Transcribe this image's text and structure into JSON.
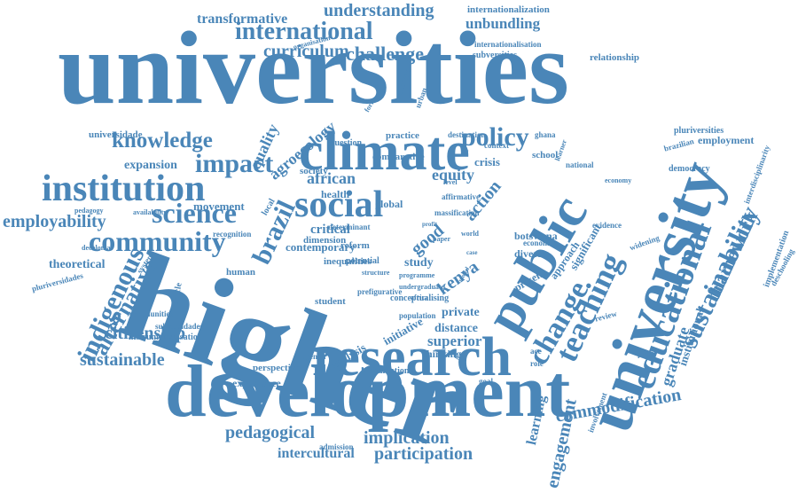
{
  "color": "#4a86b8",
  "words": [
    "universities",
    "higher",
    "development",
    "research",
    "climate",
    "institution",
    "social",
    "community",
    "science",
    "public",
    "university",
    "educational",
    "teaching",
    "change",
    "international",
    "policy",
    "impact",
    "knowledge",
    "challenge",
    "curriculum",
    "understanding",
    "transformative",
    "internationalization",
    "unbundling",
    "employability",
    "indigenous",
    "alternative",
    "citizenship",
    "sustainable",
    "sustainability",
    "framework",
    "pedagogical",
    "implication",
    "participation",
    "intercultural",
    "commodification",
    "engagement",
    "learning",
    "graduate",
    "institutional",
    "brazil",
    "quality",
    "agroecology",
    "african",
    "equity",
    "action",
    "good",
    "kenya",
    "superior",
    "distance",
    "private",
    "study",
    "critical",
    "health",
    "movement",
    "expansion",
    "universidade",
    "theoretical",
    "pluriversidades",
    "communities",
    "experience",
    "perspective",
    "analysis",
    "thinking",
    "initiative",
    "employment",
    "interdisciplinarity",
    "deschooling",
    "implementation",
    "democracy",
    "pluriversities",
    "botswana",
    "diverse",
    "present",
    "significant",
    "approach",
    "widening",
    "relationship",
    "internationalisation",
    "subversities",
    "organisation",
    "contemporary",
    "society",
    "human",
    "student",
    "potential",
    "global",
    "crisis",
    "school",
    "ghana",
    "destination",
    "practice",
    "question",
    "national",
    "brazilian",
    "evidence",
    "involvement",
    "dimension",
    "instrumentalisation",
    "article",
    "subversidades",
    "agenda",
    "comparative",
    "inequalities",
    "reform",
    "acc",
    "role",
    "goal",
    "admission",
    "evaluation",
    "conceptualising",
    "population",
    "review",
    "learner",
    "economic",
    "massification",
    "affirmative",
    "context",
    "form",
    "local",
    "urban",
    "centred",
    "economy",
    "decolonial",
    "system",
    "recognition",
    "pedagogy",
    "availability",
    "determinant",
    "prefigurative",
    "structure",
    "undergraduate",
    "programme",
    "africa",
    "paper",
    "profit",
    "model",
    "world",
    "case",
    "level",
    "view",
    "epistemic",
    "rural",
    "career",
    "skill"
  ]
}
